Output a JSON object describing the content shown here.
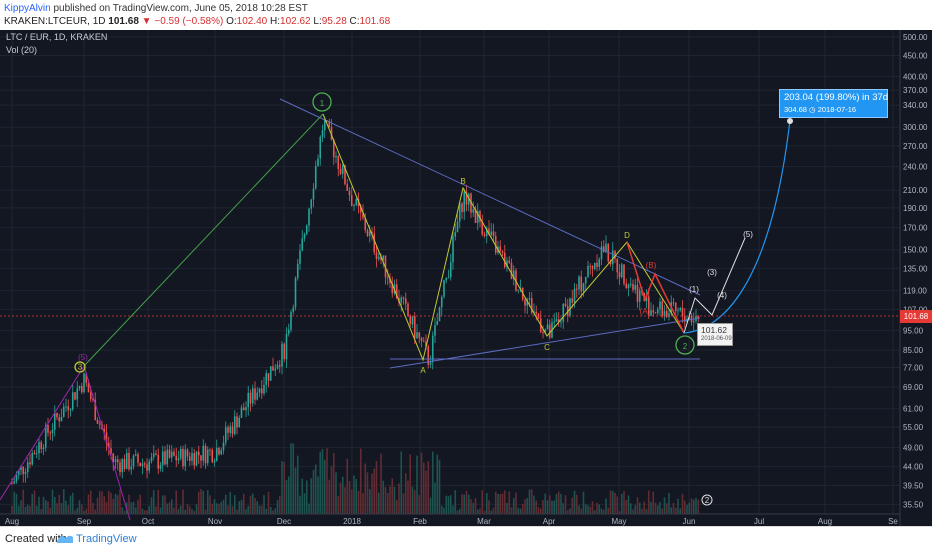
{
  "header": {
    "author": "KippyAlvin",
    "published_text": "published on TradingView.com, June 05, 2018 10:28 EST",
    "symbol": "KRAKEN:LTCEUR, 1D",
    "close_value": "101.68",
    "change_arrow": "▼",
    "change_text": "−0.59 (−0.58%)",
    "open": "102.40",
    "high": "102.62",
    "low": "95.28",
    "close": "101.68",
    "o_label": "O:",
    "h_label": "H:",
    "l_label": "L:",
    "c_label": "C:"
  },
  "chart_data": {
    "type": "candlestick",
    "title": "LTC / EUR, 1D, KRAKEN",
    "indicator": "Vol (20)",
    "y_axis": {
      "scale": "log",
      "ticks": [
        "500.00",
        "450.00",
        "400.00",
        "370.00",
        "340.00",
        "300.00",
        "270.00",
        "240.00",
        "210.00",
        "190.00",
        "170.00",
        "150.00",
        "135.00",
        "119.00",
        "107.00",
        "95.00",
        "85.00",
        "77.00",
        "69.00",
        "61.00",
        "55.00",
        "49.00",
        "44.00",
        "39.50",
        "35.50"
      ],
      "range": [
        34,
        520
      ]
    },
    "x_axis": {
      "months": [
        "Aug",
        "Sep",
        "Oct",
        "Nov",
        "Dec",
        "2018",
        "Feb",
        "Mar",
        "Apr",
        "May",
        "Jun",
        "Jul",
        "Aug",
        "Se"
      ]
    },
    "current_price": "101.68",
    "approx_close_path": [
      {
        "date": "2017-08",
        "close": 40
      },
      {
        "date": "2017-09-01",
        "close": 72
      },
      {
        "date": "2017-09-15",
        "close": 45
      },
      {
        "date": "2017-10-01",
        "close": 45
      },
      {
        "date": "2017-11-01",
        "close": 48
      },
      {
        "date": "2017-12-01",
        "close": 85
      },
      {
        "date": "2017-12-19",
        "close": 310
      },
      {
        "date": "2018-01-01",
        "close": 200
      },
      {
        "date": "2018-02-05",
        "close": 80
      },
      {
        "date": "2018-02-20",
        "close": 205
      },
      {
        "date": "2018-03-01",
        "close": 170
      },
      {
        "date": "2018-04-01",
        "close": 92
      },
      {
        "date": "2018-04-24",
        "close": 152
      },
      {
        "date": "2018-05-15",
        "close": 108
      },
      {
        "date": "2018-06-05",
        "close": 101.68
      }
    ],
    "wave_labels": {
      "circled": [
        "1",
        "2",
        "3"
      ],
      "letters": [
        "A",
        "B",
        "C",
        "D"
      ],
      "projected": [
        "(1)",
        "(3)",
        "(4)",
        "(5)"
      ],
      "sub": [
        "(A)",
        "(B)"
      ],
      "small": [
        "(5)"
      ]
    },
    "projection_box": {
      "text": "203.04 (199.80%) in 37d",
      "subtext": "304.68",
      "date": "2018-07-16"
    },
    "price_tooltip": {
      "value": "101.62",
      "date": "2018-06-09"
    },
    "volume_badge": "2"
  },
  "footer": {
    "created_with": "Created with",
    "brand": "TradingView"
  }
}
